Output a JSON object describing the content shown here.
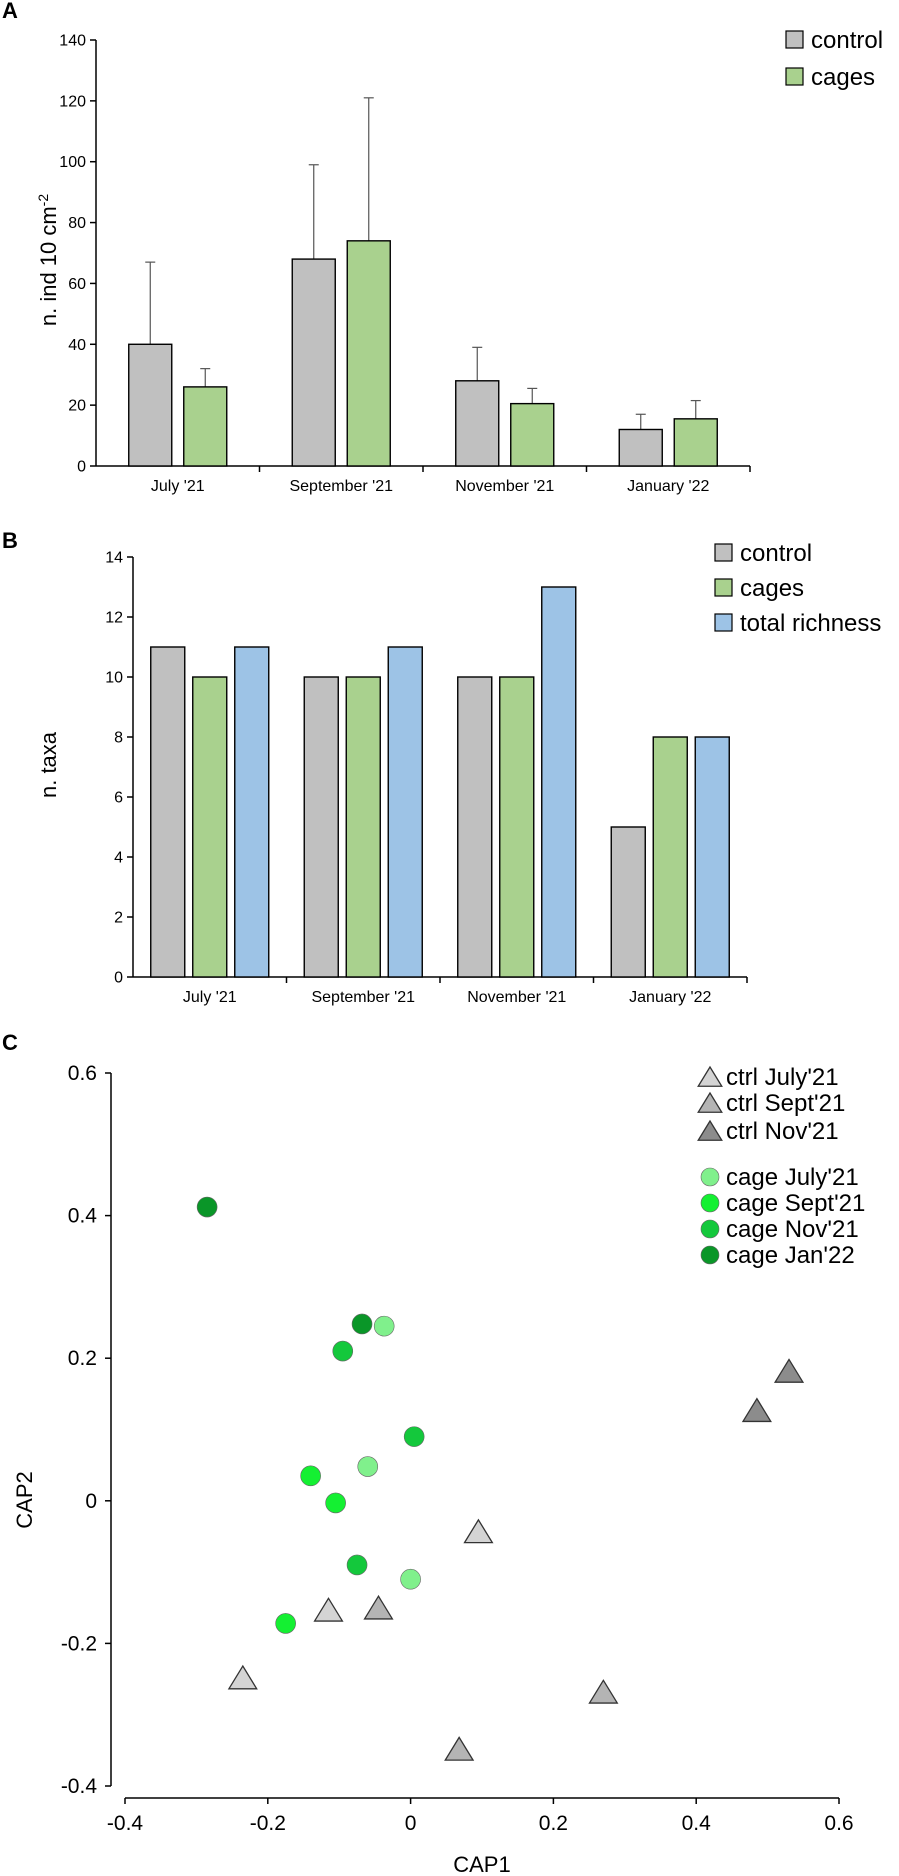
{
  "colors": {
    "control": "#c0c0c0",
    "cages": "#a9d18e",
    "total_richness": "#9dc3e6",
    "ctrl_july": "#d4d4d4",
    "ctrl_sept": "#b4b4b4",
    "ctrl_nov": "#8c8c8c",
    "cage_july": "#80f08c",
    "cage_sept": "#14f032",
    "cage_nov": "#14c83c",
    "cage_jan": "#0a9628"
  },
  "panels": {
    "a": "A",
    "b": "B",
    "c": "C"
  },
  "chart_data": [
    {
      "id": "A",
      "type": "bar",
      "title": "",
      "xlabel": "",
      "ylabel": "n. ind 10 cm",
      "ylabel_superscript": "-2",
      "ylim": [
        0,
        140
      ],
      "yticks": [
        0,
        20,
        40,
        60,
        80,
        100,
        120,
        140
      ],
      "categories": [
        "July '21",
        "September '21",
        "November '21",
        "January '22"
      ],
      "series": [
        {
          "name": "control",
          "color": "#c0c0c0",
          "values": [
            40,
            68,
            28,
            12
          ],
          "errors": [
            27,
            31,
            11,
            5
          ]
        },
        {
          "name": "cages",
          "color": "#a9d18e",
          "values": [
            26,
            74,
            20.5,
            15.5
          ],
          "errors": [
            6,
            47,
            5,
            6
          ]
        }
      ],
      "legend": [
        "control",
        "cages"
      ],
      "legend_position": "top-right"
    },
    {
      "id": "B",
      "type": "bar",
      "title": "",
      "xlabel": "",
      "ylabel": "n. taxa",
      "ylim": [
        0,
        14
      ],
      "yticks": [
        0,
        2,
        4,
        6,
        8,
        10,
        12,
        14
      ],
      "categories": [
        "July '21",
        "September '21",
        "November '21",
        "January '22"
      ],
      "series": [
        {
          "name": "control",
          "color": "#c0c0c0",
          "values": [
            11,
            10,
            10,
            5
          ]
        },
        {
          "name": "cages",
          "color": "#a9d18e",
          "values": [
            10,
            10,
            10,
            8
          ]
        },
        {
          "name": "total richness",
          "color": "#9dc3e6",
          "values": [
            11,
            11,
            13,
            8
          ]
        }
      ],
      "legend": [
        "control",
        "cages",
        "total richness"
      ],
      "legend_position": "top-right"
    },
    {
      "id": "C",
      "type": "scatter",
      "title": "",
      "xlabel": "CAP1",
      "ylabel": "CAP2",
      "xlim": [
        -0.4,
        0.6
      ],
      "ylim": [
        -0.4,
        0.6
      ],
      "xticks": [
        -0.4,
        -0.2,
        0,
        0.2,
        0.4,
        0.6
      ],
      "xtick_labels": [
        "-0.4",
        "-0.2",
        "0",
        "0.2",
        "0.4",
        "0.6"
      ],
      "yticks": [
        -0.4,
        -0.2,
        0,
        0.2,
        0.4,
        0.6
      ],
      "ytick_labels": [
        "-0.4",
        "-0.2",
        "0",
        "0.2",
        "0.4",
        "0.6"
      ],
      "legend_position": "top-right",
      "series": [
        {
          "name": "ctrl July'21",
          "marker": "triangle",
          "color": "#d4d4d4",
          "points": [
            [
              0.095,
              -0.045
            ],
            [
              -0.115,
              -0.155
            ],
            [
              -0.235,
              -0.25
            ]
          ]
        },
        {
          "name": "ctrl Sept'21",
          "marker": "triangle",
          "color": "#b4b4b4",
          "points": [
            [
              -0.045,
              -0.152
            ],
            [
              0.27,
              -0.27
            ],
            [
              0.068,
              -0.35
            ]
          ]
        },
        {
          "name": "ctrl Nov'21",
          "marker": "triangle",
          "color": "#8c8c8c",
          "points": [
            [
              0.53,
              0.18
            ],
            [
              0.485,
              0.125
            ]
          ]
        },
        {
          "name": "cage July'21",
          "marker": "circle",
          "color": "#80f08c",
          "points": [
            [
              -0.037,
              0.245
            ],
            [
              -0.06,
              0.048
            ],
            [
              0.0,
              -0.11
            ]
          ]
        },
        {
          "name": "cage Sept'21",
          "marker": "circle",
          "color": "#14f032",
          "points": [
            [
              -0.14,
              0.035
            ],
            [
              -0.105,
              -0.003
            ],
            [
              -0.175,
              -0.172
            ]
          ]
        },
        {
          "name": "cage Nov'21",
          "marker": "circle",
          "color": "#14c83c",
          "points": [
            [
              -0.095,
              0.21
            ],
            [
              0.005,
              0.09
            ],
            [
              -0.075,
              -0.09
            ]
          ]
        },
        {
          "name": "cage Jan'22",
          "marker": "circle",
          "color": "#0a9628",
          "points": [
            [
              -0.285,
              0.412
            ],
            [
              -0.068,
              0.248
            ]
          ]
        }
      ]
    }
  ]
}
